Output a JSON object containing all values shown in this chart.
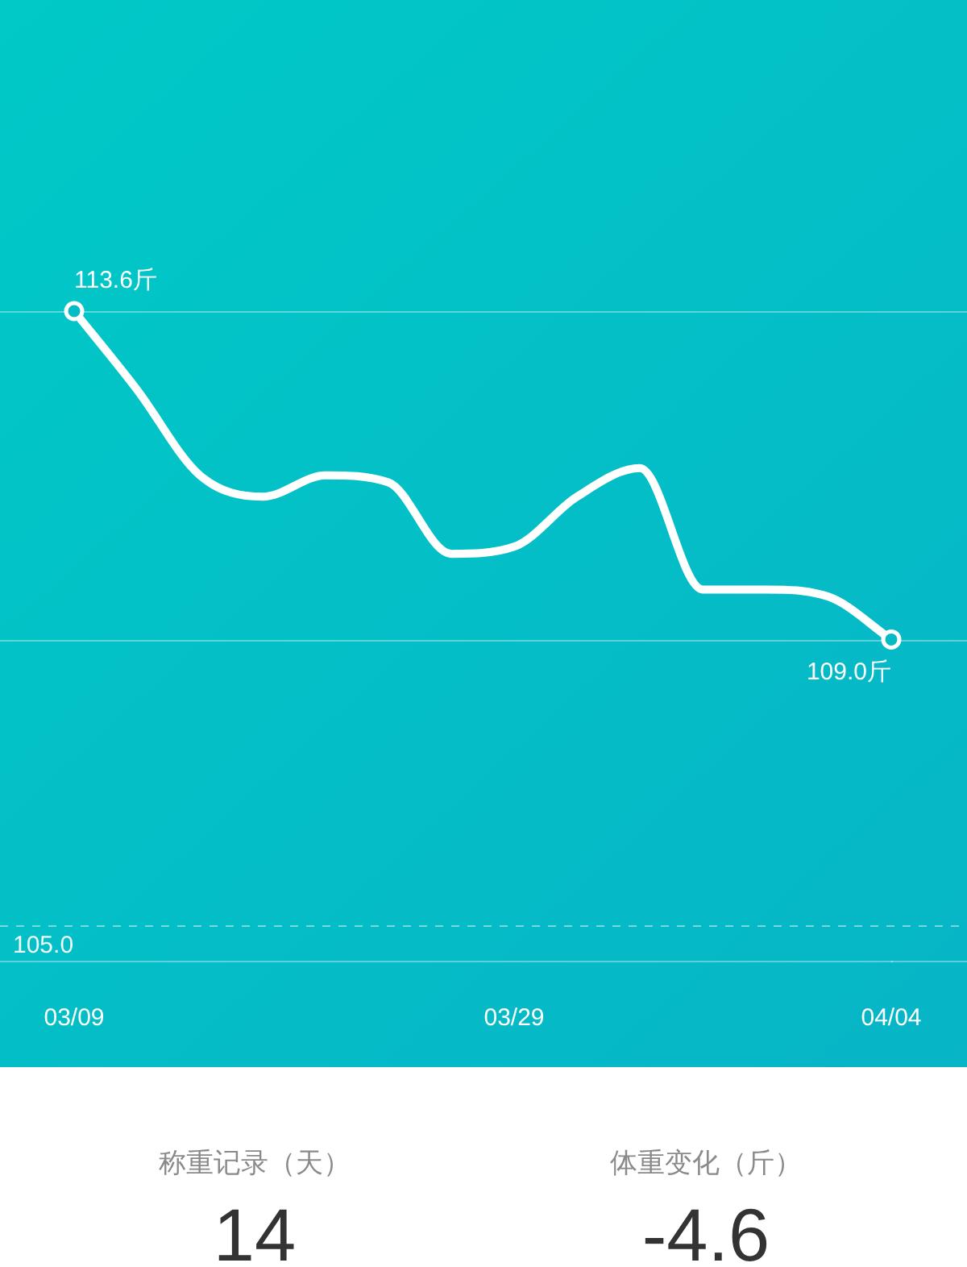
{
  "chart_data": [
    {
      "type": "line",
      "categories": [
        "03/09",
        null,
        null,
        null,
        null,
        null,
        null,
        "03/29",
        null,
        null,
        null,
        null,
        null,
        "04/04"
      ],
      "series": [
        {
          "color": "#ffffff",
          "values": [
            113.6,
            112.5,
            111.3,
            111.0,
            111.3,
            111.2,
            110.2,
            110.3,
            111.0,
            111.4,
            109.7,
            109.7,
            109.6,
            109.0
          ],
          "value_labels": [
            "113.6斤",
            null,
            null,
            null,
            null,
            null,
            null,
            null,
            null,
            null,
            null,
            null,
            null,
            "109.0斤"
          ]
        },
        {
          "type": "scatter",
          "color": "#ffffff",
          "marker": "circle",
          "x": [
            "03/09",
            "04/04"
          ],
          "values": [
            113.6,
            109.0
          ]
        }
      ],
      "ylim": [
        104.5,
        113.6
      ],
      "tick_labels": "x",
      "marker": "none",
      "line_style": "solid",
      "ref_lines": [
        {
          "axis": "y",
          "value": 113.6
        },
        {
          "axis": "y",
          "value": 109.0
        },
        {
          "axis": "y",
          "value": 105.0,
          "label": "105.0",
          "line_style": "dashed"
        }
      ]
    },
    {
      "type": "other",
      "annotations": [
        "称重记录（天）",
        "14",
        "体重变化（斤）",
        "-4.6"
      ]
    }
  ]
}
